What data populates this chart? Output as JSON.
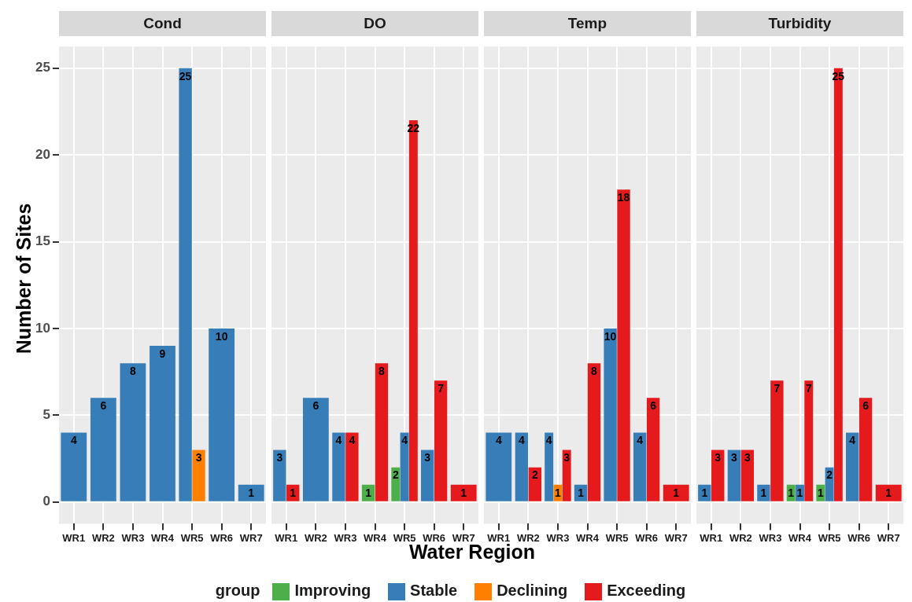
{
  "chart_data": [
    {
      "type": "bar",
      "title": "Cond",
      "ylabel": "Number of Sites",
      "legend_title": "group",
      "legend": "bottom",
      "grid": true,
      "data_labels": true,
      "ylim": [
        -1.25,
        26.25
      ],
      "yticks": [
        0,
        5,
        10,
        15,
        20,
        25
      ],
      "categories": [
        "WR1",
        "WR2",
        "WR3",
        "WR4",
        "WR5",
        "WR6",
        "WR7"
      ],
      "series": [
        {
          "name": "Improving",
          "color": "#4daf4a",
          "values": [
            null,
            null,
            null,
            null,
            null,
            null,
            null
          ]
        },
        {
          "name": "Stable",
          "color": "#377eb8",
          "values": [
            4,
            6,
            8,
            9,
            25,
            10,
            1
          ]
        },
        {
          "name": "Declining",
          "color": "#ff7f00",
          "values": [
            null,
            null,
            null,
            null,
            3,
            null,
            null
          ]
        },
        {
          "name": "Exceeding",
          "color": "#e41a1c",
          "values": [
            null,
            null,
            null,
            null,
            null,
            null,
            null
          ]
        }
      ]
    },
    {
      "type": "bar",
      "title": "DO",
      "xlabel": "Water Region",
      "grid": true,
      "data_labels": true,
      "tick_labels": "x",
      "ylim": [
        -1.25,
        26.25
      ],
      "yticks": [
        0,
        5,
        10,
        15,
        20,
        25
      ],
      "categories": [
        "WR1",
        "WR2",
        "WR3",
        "WR4",
        "WR5",
        "WR6",
        "WR7"
      ],
      "series": [
        {
          "color": "#4daf4a",
          "values": [
            null,
            null,
            null,
            1,
            2,
            null,
            null
          ]
        },
        {
          "color": "#377eb8",
          "values": [
            3,
            6,
            4,
            null,
            4,
            3,
            null
          ]
        },
        {
          "color": "#ff7f00",
          "values": [
            null,
            null,
            null,
            null,
            null,
            null,
            null
          ]
        },
        {
          "color": "#e41a1c",
          "values": [
            1,
            null,
            4,
            8,
            22,
            7,
            1
          ]
        }
      ]
    },
    {
      "type": "bar",
      "title": "Temp",
      "grid": true,
      "data_labels": true,
      "tick_labels": "x",
      "ylim": [
        -1.25,
        26.25
      ],
      "yticks": [
        0,
        5,
        10,
        15,
        20,
        25
      ],
      "categories": [
        "WR1",
        "WR2",
        "WR3",
        "WR4",
        "WR5",
        "WR6",
        "WR7"
      ],
      "series": [
        {
          "color": "#4daf4a",
          "values": [
            null,
            null,
            null,
            null,
            null,
            null,
            null
          ]
        },
        {
          "color": "#377eb8",
          "values": [
            4,
            4,
            4,
            1,
            10,
            4,
            null
          ]
        },
        {
          "color": "#ff7f00",
          "values": [
            null,
            null,
            1,
            null,
            null,
            null,
            null
          ]
        },
        {
          "color": "#e41a1c",
          "values": [
            null,
            2,
            3,
            8,
            18,
            6,
            1
          ]
        }
      ]
    },
    {
      "type": "bar",
      "title": "Turbidity",
      "grid": true,
      "data_labels": true,
      "tick_labels": "x",
      "ylim": [
        -1.25,
        26.25
      ],
      "yticks": [
        0,
        5,
        10,
        15,
        20,
        25
      ],
      "categories": [
        "WR1",
        "WR2",
        "WR3",
        "WR4",
        "WR5",
        "WR6",
        "WR7"
      ],
      "series": [
        {
          "color": "#4daf4a",
          "values": [
            null,
            null,
            null,
            1,
            1,
            null,
            null
          ]
        },
        {
          "color": "#377eb8",
          "values": [
            1,
            3,
            1,
            1,
            2,
            4,
            null
          ]
        },
        {
          "color": "#ff7f00",
          "values": [
            null,
            null,
            null,
            null,
            null,
            null,
            null
          ]
        },
        {
          "color": "#e41a1c",
          "values": [
            3,
            3,
            7,
            7,
            25,
            6,
            1
          ]
        }
      ]
    }
  ]
}
